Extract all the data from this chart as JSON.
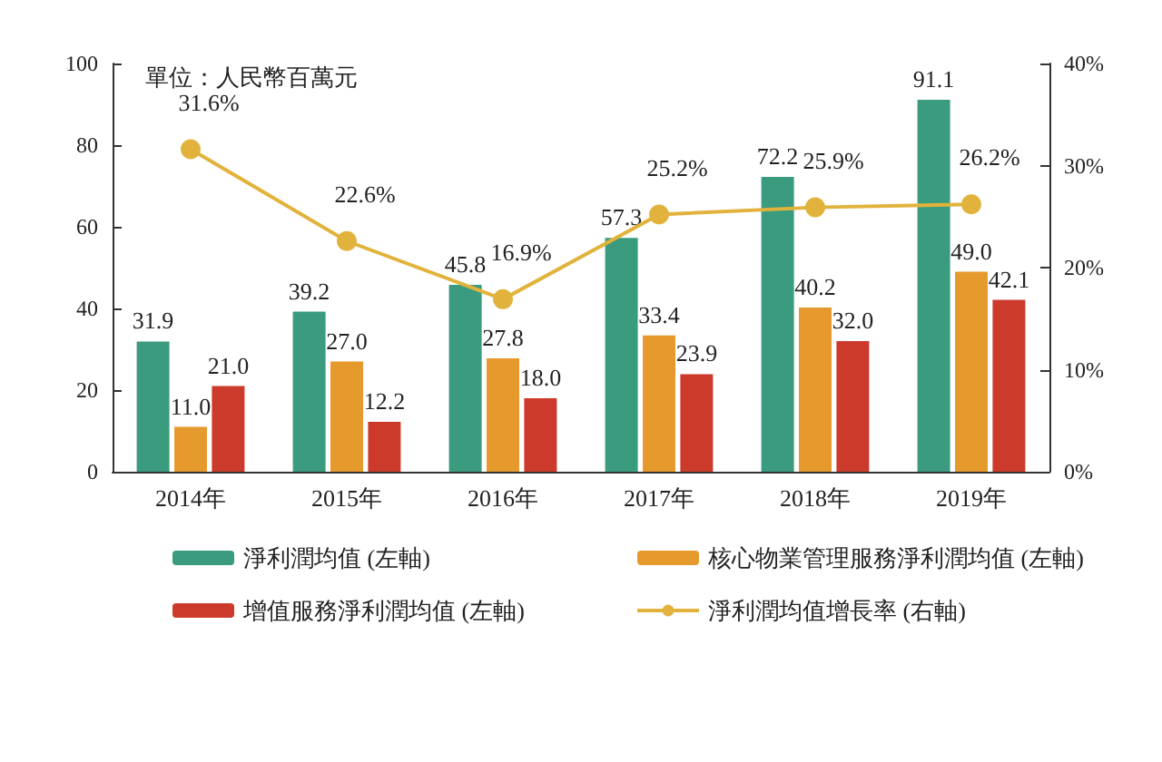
{
  "chart_data": {
    "type": "bar",
    "categories": [
      "2014年",
      "2015年",
      "2016年",
      "2017年",
      "2018年",
      "2019年"
    ],
    "series": [
      {
        "name": "淨利潤均值 (左軸)",
        "color": "#3a9b7e",
        "values": [
          31.9,
          39.2,
          45.8,
          57.3,
          72.2,
          91.1
        ],
        "value_labels": [
          "31.9",
          "39.2",
          "45.8",
          "57.3",
          "72.2",
          "91.1"
        ]
      },
      {
        "name": "核心物業管理服務淨利潤均值 (左軸)",
        "color": "#e69a2e",
        "values": [
          11.0,
          27.0,
          27.8,
          33.4,
          40.2,
          49.0
        ],
        "value_labels": [
          "11.0",
          "27.0",
          "27.8",
          "33.4",
          "40.2",
          "49.0"
        ]
      },
      {
        "name": "增值服務淨利潤均值 (左軸)",
        "color": "#cc3a2c",
        "values": [
          21.0,
          12.2,
          18.0,
          23.9,
          32.0,
          42.1
        ],
        "value_labels": [
          "21.0",
          "12.2",
          "18.0",
          "23.9",
          "32.0",
          "42.1"
        ]
      },
      {
        "name": "淨利潤均值增長率 (右軸)",
        "type": "line",
        "axis": "y2",
        "color": "#e2b33c",
        "marker": "circle",
        "values": [
          31.6,
          22.6,
          16.9,
          25.2,
          25.9,
          26.2
        ],
        "value_labels": [
          "31.6%",
          "22.6%",
          "16.9%",
          "25.2%",
          "25.9%",
          "26.2%"
        ]
      }
    ],
    "ylim": [
      0,
      100
    ],
    "yticks": [
      0,
      20,
      40,
      60,
      80,
      100
    ],
    "y2lim": [
      0,
      40
    ],
    "y2ticks": [
      {
        "value": 0,
        "label": "0%"
      },
      {
        "value": 10,
        "label": "10%"
      },
      {
        "value": 20,
        "label": "20%"
      },
      {
        "value": 30,
        "label": "30%"
      },
      {
        "value": 40,
        "label": "40%"
      }
    ],
    "annotations": [
      "單位：人民幣百萬元"
    ],
    "grid": false,
    "legend": "bottom"
  }
}
